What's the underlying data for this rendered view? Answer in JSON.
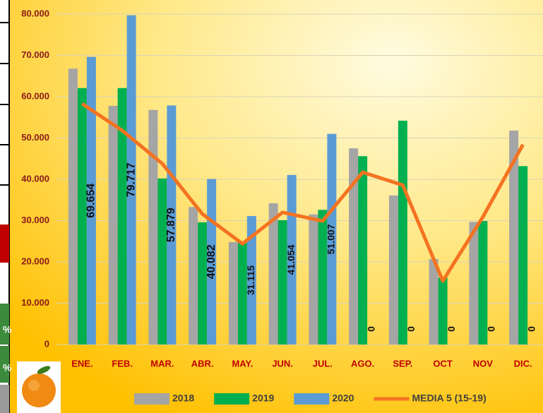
{
  "chart_data": {
    "type": "bar",
    "categories": [
      "ENE.",
      "FEB.",
      "MAR.",
      "ABR.",
      "MAY.",
      "JUN.",
      "JUL.",
      "AGO.",
      "SEP.",
      "OCT",
      "NOV",
      "DIC."
    ],
    "series": [
      {
        "name": "2018",
        "color": "#a5a5a5",
        "values": [
          66800,
          57800,
          56800,
          33300,
          24800,
          34200,
          31500,
          47500,
          36100,
          20700,
          29700,
          51800
        ]
      },
      {
        "name": "2019",
        "color": "#00b050",
        "values": [
          62100,
          62100,
          40200,
          29600,
          25000,
          30100,
          32600,
          45600,
          54200,
          16200,
          29900,
          43200
        ]
      },
      {
        "name": "2020",
        "color": "#5b9bd5",
        "values": [
          69654,
          79717,
          57879,
          40082,
          31115,
          41054,
          51007,
          0,
          0,
          0,
          0,
          0
        ],
        "value_labels": [
          "69.654",
          "79.717",
          "57.879",
          "40.082",
          "31.115",
          "41.054",
          "51.007",
          "0",
          "0",
          "0",
          "0",
          "0"
        ]
      },
      {
        "name": "MEDIA 5 (15-19)",
        "type": "line",
        "color": "#f47321",
        "values": [
          58300,
          51800,
          43800,
          31600,
          24400,
          32000,
          29900,
          41700,
          38600,
          15400,
          30900,
          48400
        ]
      }
    ],
    "ylim": [
      0,
      80000
    ],
    "yticks": [
      0,
      {
        "value": 10000,
        "label": "10.000"
      },
      {
        "value": 20000,
        "label": "20.000"
      },
      {
        "value": 30000,
        "label": "30.000"
      },
      {
        "value": 40000,
        "label": "40.000"
      },
      {
        "value": 50000,
        "label": "50.000"
      },
      {
        "value": 60000,
        "label": "60.000"
      },
      {
        "value": 70000,
        "label": "70.000"
      },
      {
        "value": 80000,
        "label": "80.000"
      }
    ],
    "grid": true,
    "legend": "bottom"
  },
  "left_panel": {
    "labels": [
      "%",
      "%"
    ]
  }
}
